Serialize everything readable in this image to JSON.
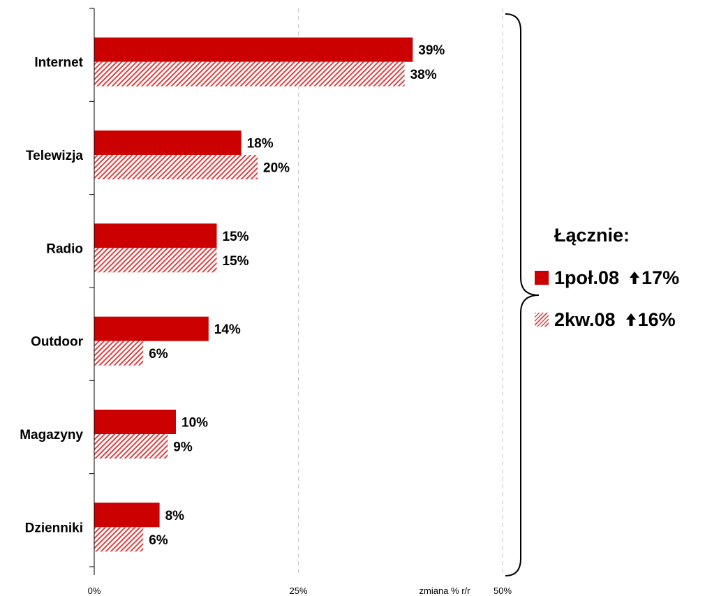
{
  "chart_data": {
    "type": "bar",
    "orientation": "horizontal",
    "categories": [
      "Internet",
      "Telewizja",
      "Radio",
      "Outdoor",
      "Magazyny",
      "Dzienniki"
    ],
    "series": [
      {
        "name": "1poł.08",
        "values": [
          39,
          18,
          15,
          14,
          10,
          8
        ],
        "value_labels": [
          "39%",
          "18%",
          "15%",
          "14%",
          "10%",
          "8%"
        ],
        "color": "#cc0000",
        "pattern": "solid"
      },
      {
        "name": "2kw.08",
        "values": [
          38,
          20,
          15,
          6,
          9,
          6
        ],
        "value_labels": [
          "38%",
          "20%",
          "15%",
          "6%",
          "9%",
          "6%"
        ],
        "color": "#e04040",
        "pattern": "diagonal-hatch"
      }
    ],
    "xlim": [
      0,
      50
    ],
    "x_ticks": [
      {
        "value": 0,
        "label": "0%"
      },
      {
        "value": 25,
        "label": "25%"
      },
      {
        "value": 50,
        "label": "50%"
      }
    ],
    "xlabel": "zmiana % r/r",
    "grid": "vertical dashed",
    "legend_placement": "right"
  },
  "legend": {
    "title": "Łącznie:",
    "items": [
      {
        "label": "1poł.08",
        "change": "17%",
        "icon": "arrow-up-icon"
      },
      {
        "label": "2kw.08",
        "change": "16%",
        "icon": "arrow-up-icon"
      }
    ]
  }
}
